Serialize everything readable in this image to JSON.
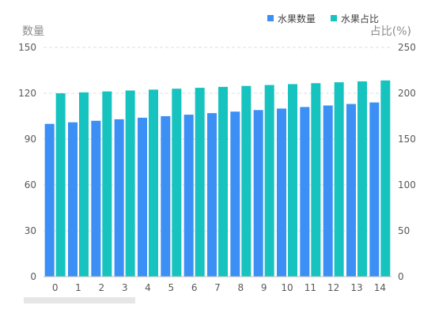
{
  "chart_data": {
    "type": "bar",
    "categories": [
      "0",
      "1",
      "2",
      "3",
      "4",
      "5",
      "6",
      "7",
      "8",
      "9",
      "10",
      "11",
      "12",
      "13",
      "14"
    ],
    "series": [
      {
        "name": "水果数量",
        "axis": "left",
        "color": "#3b8ff5",
        "values": [
          100,
          101,
          102,
          103,
          104,
          105,
          106,
          107,
          108,
          109,
          110,
          111,
          112,
          113,
          114
        ]
      },
      {
        "name": "水果占比",
        "axis": "right",
        "color": "#16c3be",
        "values": [
          200,
          201,
          202,
          203,
          204,
          205,
          206,
          207,
          208,
          209,
          210,
          211,
          212,
          213,
          214
        ]
      }
    ],
    "y_left": {
      "label": "数量",
      "ticks": [
        0,
        30,
        60,
        90,
        120,
        150
      ],
      "lim": [
        0,
        150
      ]
    },
    "y_right": {
      "label": "占比(%)",
      "ticks": [
        0,
        50,
        100,
        150,
        200,
        250
      ],
      "lim": [
        0,
        250
      ]
    },
    "grid": true,
    "legend_position": "top-right"
  }
}
